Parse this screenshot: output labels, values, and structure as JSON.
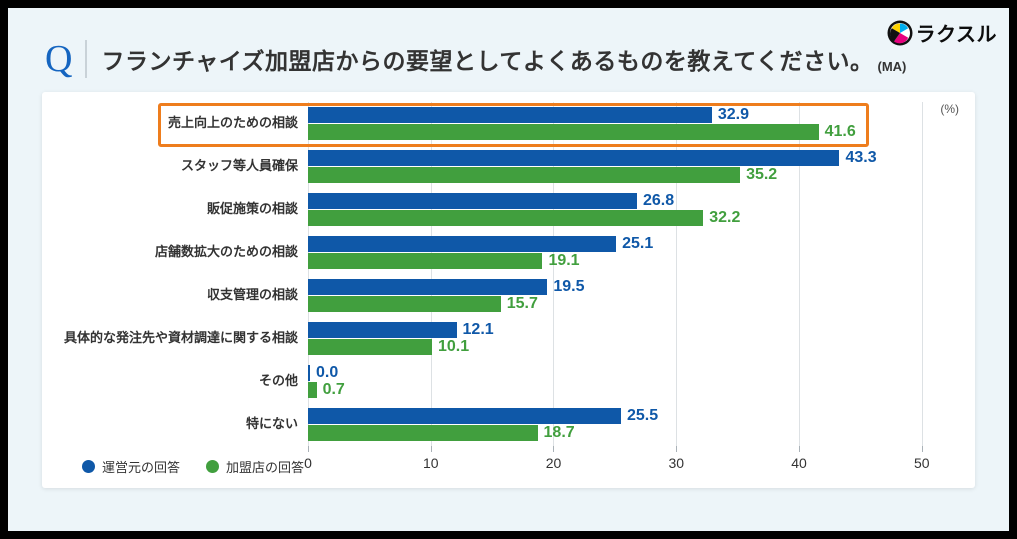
{
  "theme": {
    "frame_color": "#000000",
    "page_bg": "#EDF5F9",
    "card_bg": "#FFFFFF",
    "q_blue": "#1565C0",
    "grid_color": "#DDE1E4"
  },
  "header": {
    "q_label": "Q",
    "title": "フランチャイズ加盟店からの要望としてよくあるものを教えてください。",
    "suffix": "(MA)"
  },
  "logo": {
    "brand": "ラクスル"
  },
  "chart_data": {
    "type": "bar",
    "orientation": "horizontal",
    "unit_label": "(%)",
    "categories": [
      "売上向上のための相談",
      "スタッフ等人員確保",
      "販促施策の相談",
      "店舗数拡大のための相談",
      "収支管理の相談",
      "具体的な発注先や資材調達に関する相談",
      "その他",
      "特にない"
    ],
    "series": [
      {
        "name": "運営元の回答",
        "color": "#0F58A8",
        "values": [
          32.9,
          43.3,
          26.8,
          25.1,
          19.5,
          12.1,
          0.0,
          25.5
        ]
      },
      {
        "name": "加盟店の回答",
        "color": "#419F3E",
        "values": [
          41.6,
          35.2,
          32.2,
          19.1,
          15.7,
          10.1,
          0.7,
          18.7
        ]
      }
    ],
    "x_ticks": [
      0,
      10,
      20,
      30,
      40,
      50
    ],
    "xlim": [
      0,
      50
    ],
    "grid": true,
    "legend_position": "bottom-left",
    "highlight": {
      "category_index": 0,
      "color": "#EE7D1D"
    }
  }
}
